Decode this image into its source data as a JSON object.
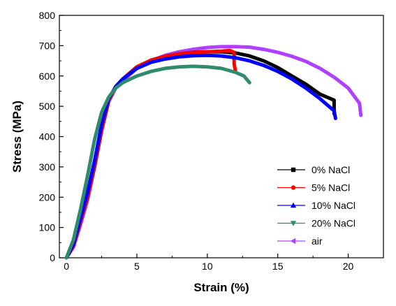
{
  "chart_data": {
    "type": "line",
    "xlabel": "Strain (%)",
    "ylabel": "Stress (MPa)",
    "xlim": [
      -0.5,
      22.5
    ],
    "ylim": [
      0,
      800
    ],
    "xticks": [
      0,
      5,
      10,
      15,
      20
    ],
    "yticks": [
      0,
      100,
      200,
      300,
      400,
      500,
      600,
      700,
      800
    ],
    "grid": false,
    "legend_position": "bottom-right",
    "series": [
      {
        "name": "0% NaCl",
        "color": "#000000",
        "marker": "square",
        "x": [
          0,
          0.5,
          1.0,
          1.5,
          2.0,
          2.5,
          3.0,
          3.5,
          4.0,
          5.0,
          6.0,
          7.0,
          8.0,
          9.0,
          10.0,
          11.0,
          12.0,
          13.0,
          14.0,
          15.0,
          16.0,
          17.0,
          18.0,
          19.0,
          19.0
        ],
        "y": [
          0,
          40,
          120,
          200,
          300,
          420,
          520,
          565,
          590,
          630,
          652,
          665,
          673,
          678,
          680,
          680,
          676,
          666,
          650,
          628,
          600,
          573,
          540,
          520,
          475
        ]
      },
      {
        "name": "5% NaCl",
        "color": "#ff0000",
        "marker": "circle",
        "x": [
          0,
          0.5,
          1.0,
          1.5,
          2.0,
          2.5,
          3.0,
          3.5,
          4.0,
          5.0,
          6.0,
          7.0,
          8.0,
          9.0,
          10.0,
          11.0,
          11.6,
          11.9,
          11.9,
          12.0
        ],
        "y": [
          0,
          40,
          120,
          200,
          300,
          420,
          520,
          565,
          590,
          630,
          652,
          665,
          673,
          678,
          680,
          682,
          684,
          678,
          640,
          615
        ]
      },
      {
        "name": "10% NaCl",
        "color": "#0000ff",
        "marker": "triangle-up",
        "x": [
          0,
          0.5,
          1.0,
          1.5,
          2.0,
          2.5,
          3.0,
          3.5,
          4.0,
          5.0,
          6.0,
          7.0,
          8.0,
          9.0,
          10.0,
          11.0,
          12.0,
          13.0,
          14.0,
          15.0,
          16.0,
          17.0,
          18.0,
          19.0,
          19.1
        ],
        "y": [
          0,
          45,
          130,
          215,
          320,
          440,
          525,
          565,
          590,
          625,
          645,
          656,
          663,
          667,
          668,
          666,
          660,
          650,
          635,
          615,
          590,
          560,
          525,
          485,
          460
        ]
      },
      {
        "name": "20% NaCl",
        "color": "#2e8b6e",
        "marker": "triangle-down",
        "x": [
          0,
          0.5,
          1.0,
          1.5,
          2.0,
          2.5,
          3.0,
          3.5,
          4.0,
          5.0,
          6.0,
          7.0,
          8.0,
          9.0,
          10.0,
          11.0,
          12.0,
          12.6,
          13.0
        ],
        "y": [
          0,
          60,
          160,
          270,
          390,
          480,
          530,
          560,
          578,
          600,
          615,
          625,
          630,
          632,
          630,
          625,
          612,
          600,
          578
        ]
      },
      {
        "name": "air",
        "color": "#b040ff",
        "marker": "triangle-left",
        "x": [
          0,
          0.5,
          1.0,
          1.5,
          2.0,
          2.5,
          3.0,
          3.5,
          4.0,
          5.0,
          6.0,
          7.0,
          8.0,
          9.0,
          10.0,
          11.0,
          12.0,
          13.0,
          14.0,
          15.0,
          16.0,
          17.0,
          18.0,
          19.0,
          20.0,
          20.8,
          20.9
        ],
        "y": [
          0,
          35,
          110,
          190,
          300,
          420,
          515,
          560,
          585,
          625,
          650,
          668,
          680,
          688,
          694,
          697,
          697,
          695,
          688,
          678,
          665,
          648,
          625,
          596,
          560,
          510,
          470
        ]
      }
    ]
  }
}
